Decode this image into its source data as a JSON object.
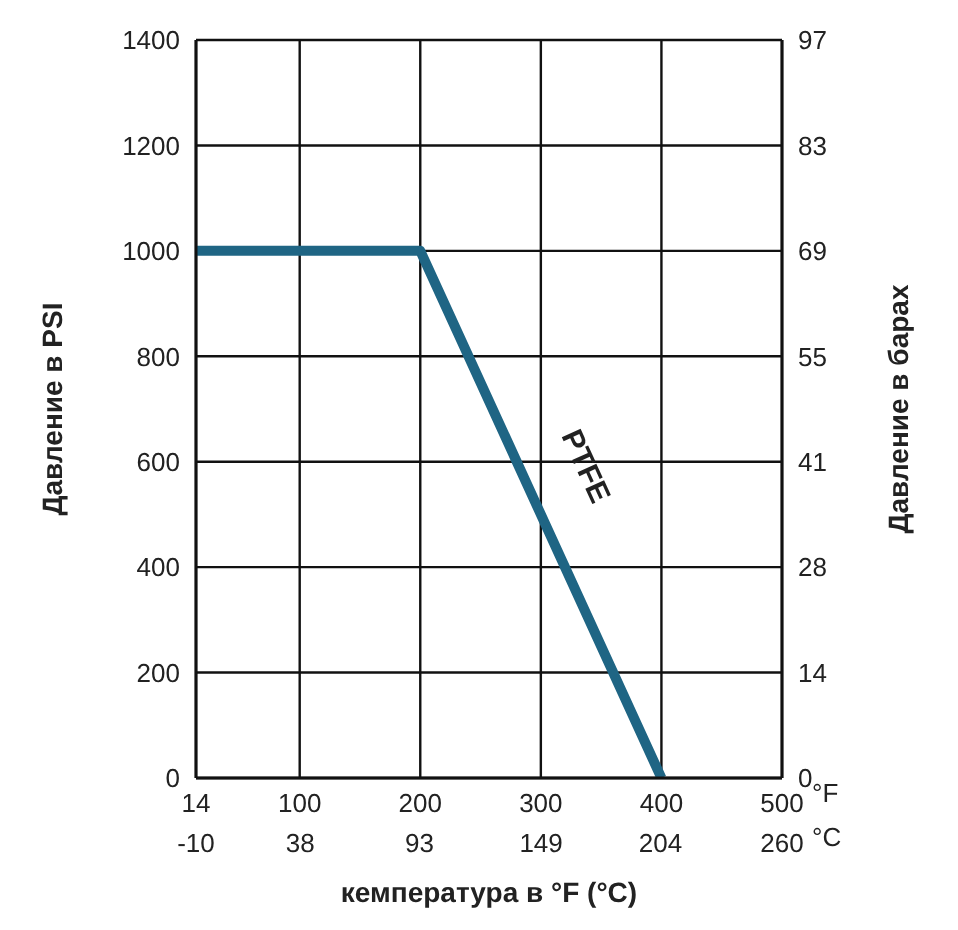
{
  "chart_data": {
    "type": "line",
    "xlabel": "кемпература в °F (°C)",
    "ylabel": "Давление в PSI",
    "y2label": "Давление в барах",
    "x": [
      14,
      200,
      400
    ],
    "series": [
      {
        "name": "PTFE",
        "color": "#1f6584",
        "values": [
          1000,
          1000,
          0
        ]
      }
    ],
    "xlim": [
      14,
      500
    ],
    "xticks": [
      14,
      100,
      200,
      300,
      400,
      500
    ],
    "x2lim": [
      -10,
      260
    ],
    "x2ticks": [
      -10,
      38,
      93,
      149,
      204,
      260
    ],
    "ylim": [
      0,
      1400
    ],
    "yticks": [
      0,
      200,
      400,
      600,
      800,
      1000,
      1200,
      1400
    ],
    "y2lim": [
      0,
      96.53
    ],
    "y2ticks": [
      0,
      {
        "value": 13.79,
        "label": "14"
      },
      {
        "value": 27.58,
        "label": "28"
      },
      {
        "value": 41.37,
        "label": "41"
      },
      {
        "value": 55.16,
        "label": "55"
      },
      {
        "value": 68.95,
        "label": "69"
      },
      {
        "value": 82.74,
        "label": "83"
      },
      {
        "value": 96.53,
        "label": "97"
      }
    ],
    "annotations": [
      "°F",
      "°C"
    ],
    "grid": true,
    "legend": false,
    "marker": "none",
    "line_style": "solid"
  }
}
